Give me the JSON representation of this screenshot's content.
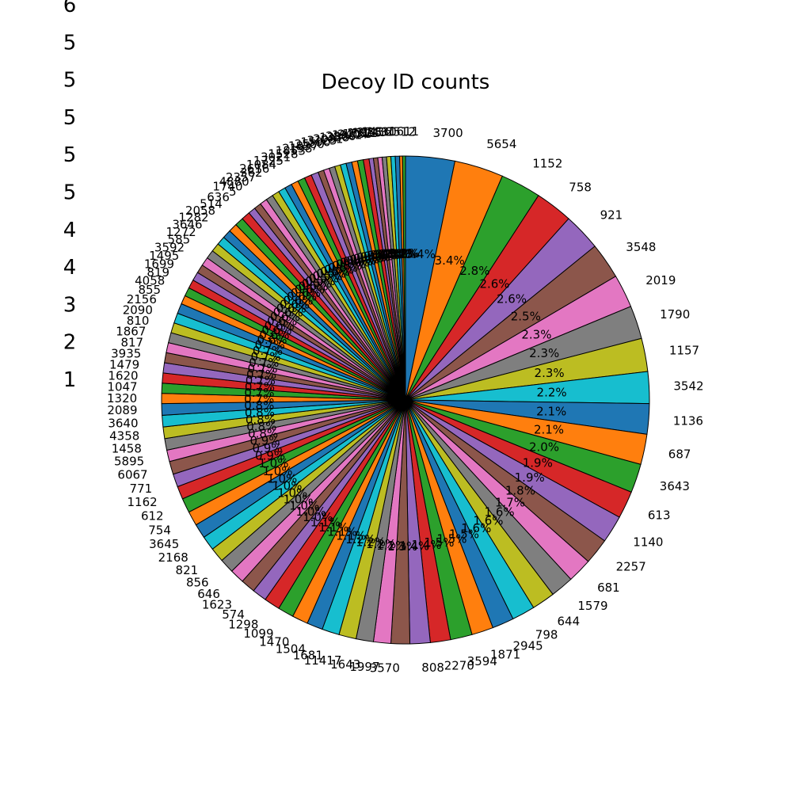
{
  "chart_data": {
    "type": "pie",
    "title": "Decoy ID counts",
    "start_angle_deg": 90,
    "direction": "clockwise",
    "palette": [
      "#1f77b4",
      "#ff7f0e",
      "#2ca02c",
      "#d62728",
      "#9467bd",
      "#8c564b",
      "#e377c2",
      "#7f7f7f",
      "#bcbd22",
      "#17becf"
    ],
    "side_numbers": [
      "6",
      "5",
      "5",
      "5",
      "5",
      "5",
      "4",
      "4",
      "3",
      "2",
      "1"
    ],
    "slices": [
      {
        "label": "3700",
        "value": 3.4
      },
      {
        "label": "5654",
        "value": 3.4
      },
      {
        "label": "1152",
        "value": 2.8
      },
      {
        "label": "758",
        "value": 2.6
      },
      {
        "label": "921",
        "value": 2.6
      },
      {
        "label": "3548",
        "value": 2.5
      },
      {
        "label": "2019",
        "value": 2.3
      },
      {
        "label": "1790",
        "value": 2.3
      },
      {
        "label": "1157",
        "value": 2.3
      },
      {
        "label": "3542",
        "value": 2.2
      },
      {
        "label": "1136",
        "value": 2.1
      },
      {
        "label": "687",
        "value": 2.1
      },
      {
        "label": "3643",
        "value": 2.0
      },
      {
        "label": "613",
        "value": 1.9
      },
      {
        "label": "1140",
        "value": 1.9
      },
      {
        "label": "2257",
        "value": 1.8
      },
      {
        "label": "681",
        "value": 1.7
      },
      {
        "label": "1579",
        "value": 1.6
      },
      {
        "label": "644",
        "value": 1.6
      },
      {
        "label": "798",
        "value": 1.6
      },
      {
        "label": "2945",
        "value": 1.5
      },
      {
        "label": "1871",
        "value": 1.5
      },
      {
        "label": "3594",
        "value": 1.5
      },
      {
        "label": "2270",
        "value": 1.4
      },
      {
        "label": "808",
        "value": 1.4
      },
      {
        "label": "3570",
        "value": 1.3
      },
      {
        "label": "1997",
        "value": 1.2
      },
      {
        "label": "1643",
        "value": 1.2
      },
      {
        "label": "11417",
        "value": 1.2
      },
      {
        "label": "1681",
        "value": 1.2
      },
      {
        "label": "1504",
        "value": 1.1
      },
      {
        "label": "1470",
        "value": 1.1
      },
      {
        "label": "1099",
        "value": 1.1
      },
      {
        "label": "1298",
        "value": 1.1
      },
      {
        "label": "574",
        "value": 1.0
      },
      {
        "label": "1623",
        "value": 1.0
      },
      {
        "label": "646",
        "value": 1.0
      },
      {
        "label": "856",
        "value": 1.0
      },
      {
        "label": "821",
        "value": 1.0
      },
      {
        "label": "2168",
        "value": 1.0
      },
      {
        "label": "3645",
        "value": 1.0
      },
      {
        "label": "754",
        "value": 1.0
      },
      {
        "label": "612",
        "value": 1.0
      },
      {
        "label": "1162",
        "value": 0.9
      },
      {
        "label": "771",
        "value": 0.9
      },
      {
        "label": "6067",
        "value": 0.9
      },
      {
        "label": "5895",
        "value": 0.8
      },
      {
        "label": "1458",
        "value": 0.8
      },
      {
        "label": "4358",
        "value": 0.8
      },
      {
        "label": "3640",
        "value": 0.8
      },
      {
        "label": "2089",
        "value": 0.8
      },
      {
        "label": "1320",
        "value": 0.7
      },
      {
        "label": "1047",
        "value": 0.7
      },
      {
        "label": "1620",
        "value": 0.7
      },
      {
        "label": "1479",
        "value": 0.7
      },
      {
        "label": "3935",
        "value": 0.7
      },
      {
        "label": "817",
        "value": 0.7
      },
      {
        "label": "1867",
        "value": 0.7
      },
      {
        "label": "810",
        "value": 0.7
      },
      {
        "label": "2090",
        "value": 0.7
      },
      {
        "label": "2156",
        "value": 0.7
      },
      {
        "label": "855",
        "value": 0.6
      },
      {
        "label": "4058",
        "value": 0.6
      },
      {
        "label": "819",
        "value": 0.6
      },
      {
        "label": "1699",
        "value": 0.6
      },
      {
        "label": "1495",
        "value": 0.6
      },
      {
        "label": "3592",
        "value": 0.6
      },
      {
        "label": "585",
        "value": 0.6
      },
      {
        "label": "1272",
        "value": 0.6
      },
      {
        "label": "3646",
        "value": 0.6
      },
      {
        "label": "1282",
        "value": 0.6
      },
      {
        "label": "2058",
        "value": 0.6
      },
      {
        "label": "514",
        "value": 0.6
      },
      {
        "label": "636",
        "value": 0.6
      },
      {
        "label": "5",
        "value": 0.5
      },
      {
        "label": "1740",
        "value": 0.5
      },
      {
        "label": "4880",
        "value": 0.5
      },
      {
        "label": "2357",
        "value": 0.5
      },
      {
        "label": "362",
        "value": 0.5
      },
      {
        "label": "2616",
        "value": 0.5
      },
      {
        "label": "1084",
        "value": 0.5
      },
      {
        "label": "1725",
        "value": 0.5
      },
      {
        "label": "3021",
        "value": 0.5
      },
      {
        "label": "1528",
        "value": 0.5
      },
      {
        "label": "1853",
        "value": 0.5
      },
      {
        "label": "2198",
        "value": 0.4
      },
      {
        "label": "1837",
        "value": 0.4
      },
      {
        "label": "2580",
        "value": 0.4
      },
      {
        "label": "1590",
        "value": 0.4
      },
      {
        "label": "3125",
        "value": 0.4
      },
      {
        "label": "2081",
        "value": 0.4
      },
      {
        "label": "1338",
        "value": 0.4
      },
      {
        "label": "2866",
        "value": 0.4
      },
      {
        "label": "1921",
        "value": 0.4
      },
      {
        "label": "2404",
        "value": 0.3
      },
      {
        "label": "1763",
        "value": 0.3
      },
      {
        "label": "2311",
        "value": 0.3
      },
      {
        "label": "1955",
        "value": 0.3
      },
      {
        "label": "2743",
        "value": 0.3
      },
      {
        "label": "1436",
        "value": 0.3
      },
      {
        "label": "2830",
        "value": 0.3
      },
      {
        "label": "2512",
        "value": 0.2
      },
      {
        "label": "1611",
        "value": 0.2
      }
    ]
  }
}
